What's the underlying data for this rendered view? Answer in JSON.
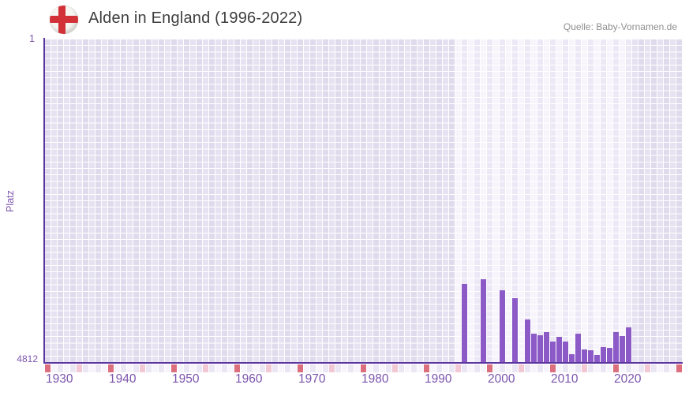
{
  "header": {
    "title": "Alden in England (1996-2022)",
    "flag_icon": "england-flag-icon",
    "source": "Quelle: Baby-Vornamen.de"
  },
  "chart_data": {
    "type": "bar",
    "title": "Alden in England (1996-2022)",
    "xlabel": "",
    "ylabel": "Platz",
    "y_axis": {
      "min": 1,
      "max": 4812,
      "inverted": true,
      "tick_labels": [
        "1",
        "4812"
      ]
    },
    "x_axis": {
      "start_year": 1930,
      "end_year": 2030,
      "tick_years": [
        1930,
        1940,
        1950,
        1960,
        1970,
        1980,
        1990,
        2000,
        2010,
        2020
      ]
    },
    "highlight_band": {
      "from_year": 1995,
      "to_year": 2022
    },
    "series": [
      {
        "name": "Alden",
        "value_meaning": "Platz (rank, 1 = best)",
        "points": [
          {
            "year": 1996,
            "rank": 3650
          },
          {
            "year": 1999,
            "rank": 3580
          },
          {
            "year": 2002,
            "rank": 3737
          },
          {
            "year": 2004,
            "rank": 3855
          },
          {
            "year": 2006,
            "rank": 4172
          },
          {
            "year": 2007,
            "rank": 4384
          },
          {
            "year": 2008,
            "rank": 4415
          },
          {
            "year": 2009,
            "rank": 4368
          },
          {
            "year": 2010,
            "rank": 4509
          },
          {
            "year": 2011,
            "rank": 4438
          },
          {
            "year": 2012,
            "rank": 4509
          },
          {
            "year": 2013,
            "rank": 4690
          },
          {
            "year": 2014,
            "rank": 4392
          },
          {
            "year": 2015,
            "rank": 4620
          },
          {
            "year": 2016,
            "rank": 4631
          },
          {
            "year": 2017,
            "rank": 4706
          },
          {
            "year": 2018,
            "rank": 4588
          },
          {
            "year": 2019,
            "rank": 4600
          },
          {
            "year": 2020,
            "rank": 4361
          },
          {
            "year": 2021,
            "rank": 4423
          },
          {
            "year": 2022,
            "rank": 4290
          }
        ]
      }
    ],
    "colors": {
      "bar": "#8c5ac6",
      "axis_line": "#5b36a0",
      "axis_text": "#7c55ae",
      "decade_marker": "#dc6f7e",
      "half_decade_marker": "#f2c8d4",
      "strip_cell_even": "#ebe6f4",
      "strip_cell_odd": "#f7f5fb",
      "flag_red": "#d23138",
      "title_text": "#3e3e3e",
      "source_text": "#8f8f8f"
    },
    "legend": null,
    "grid": true
  }
}
